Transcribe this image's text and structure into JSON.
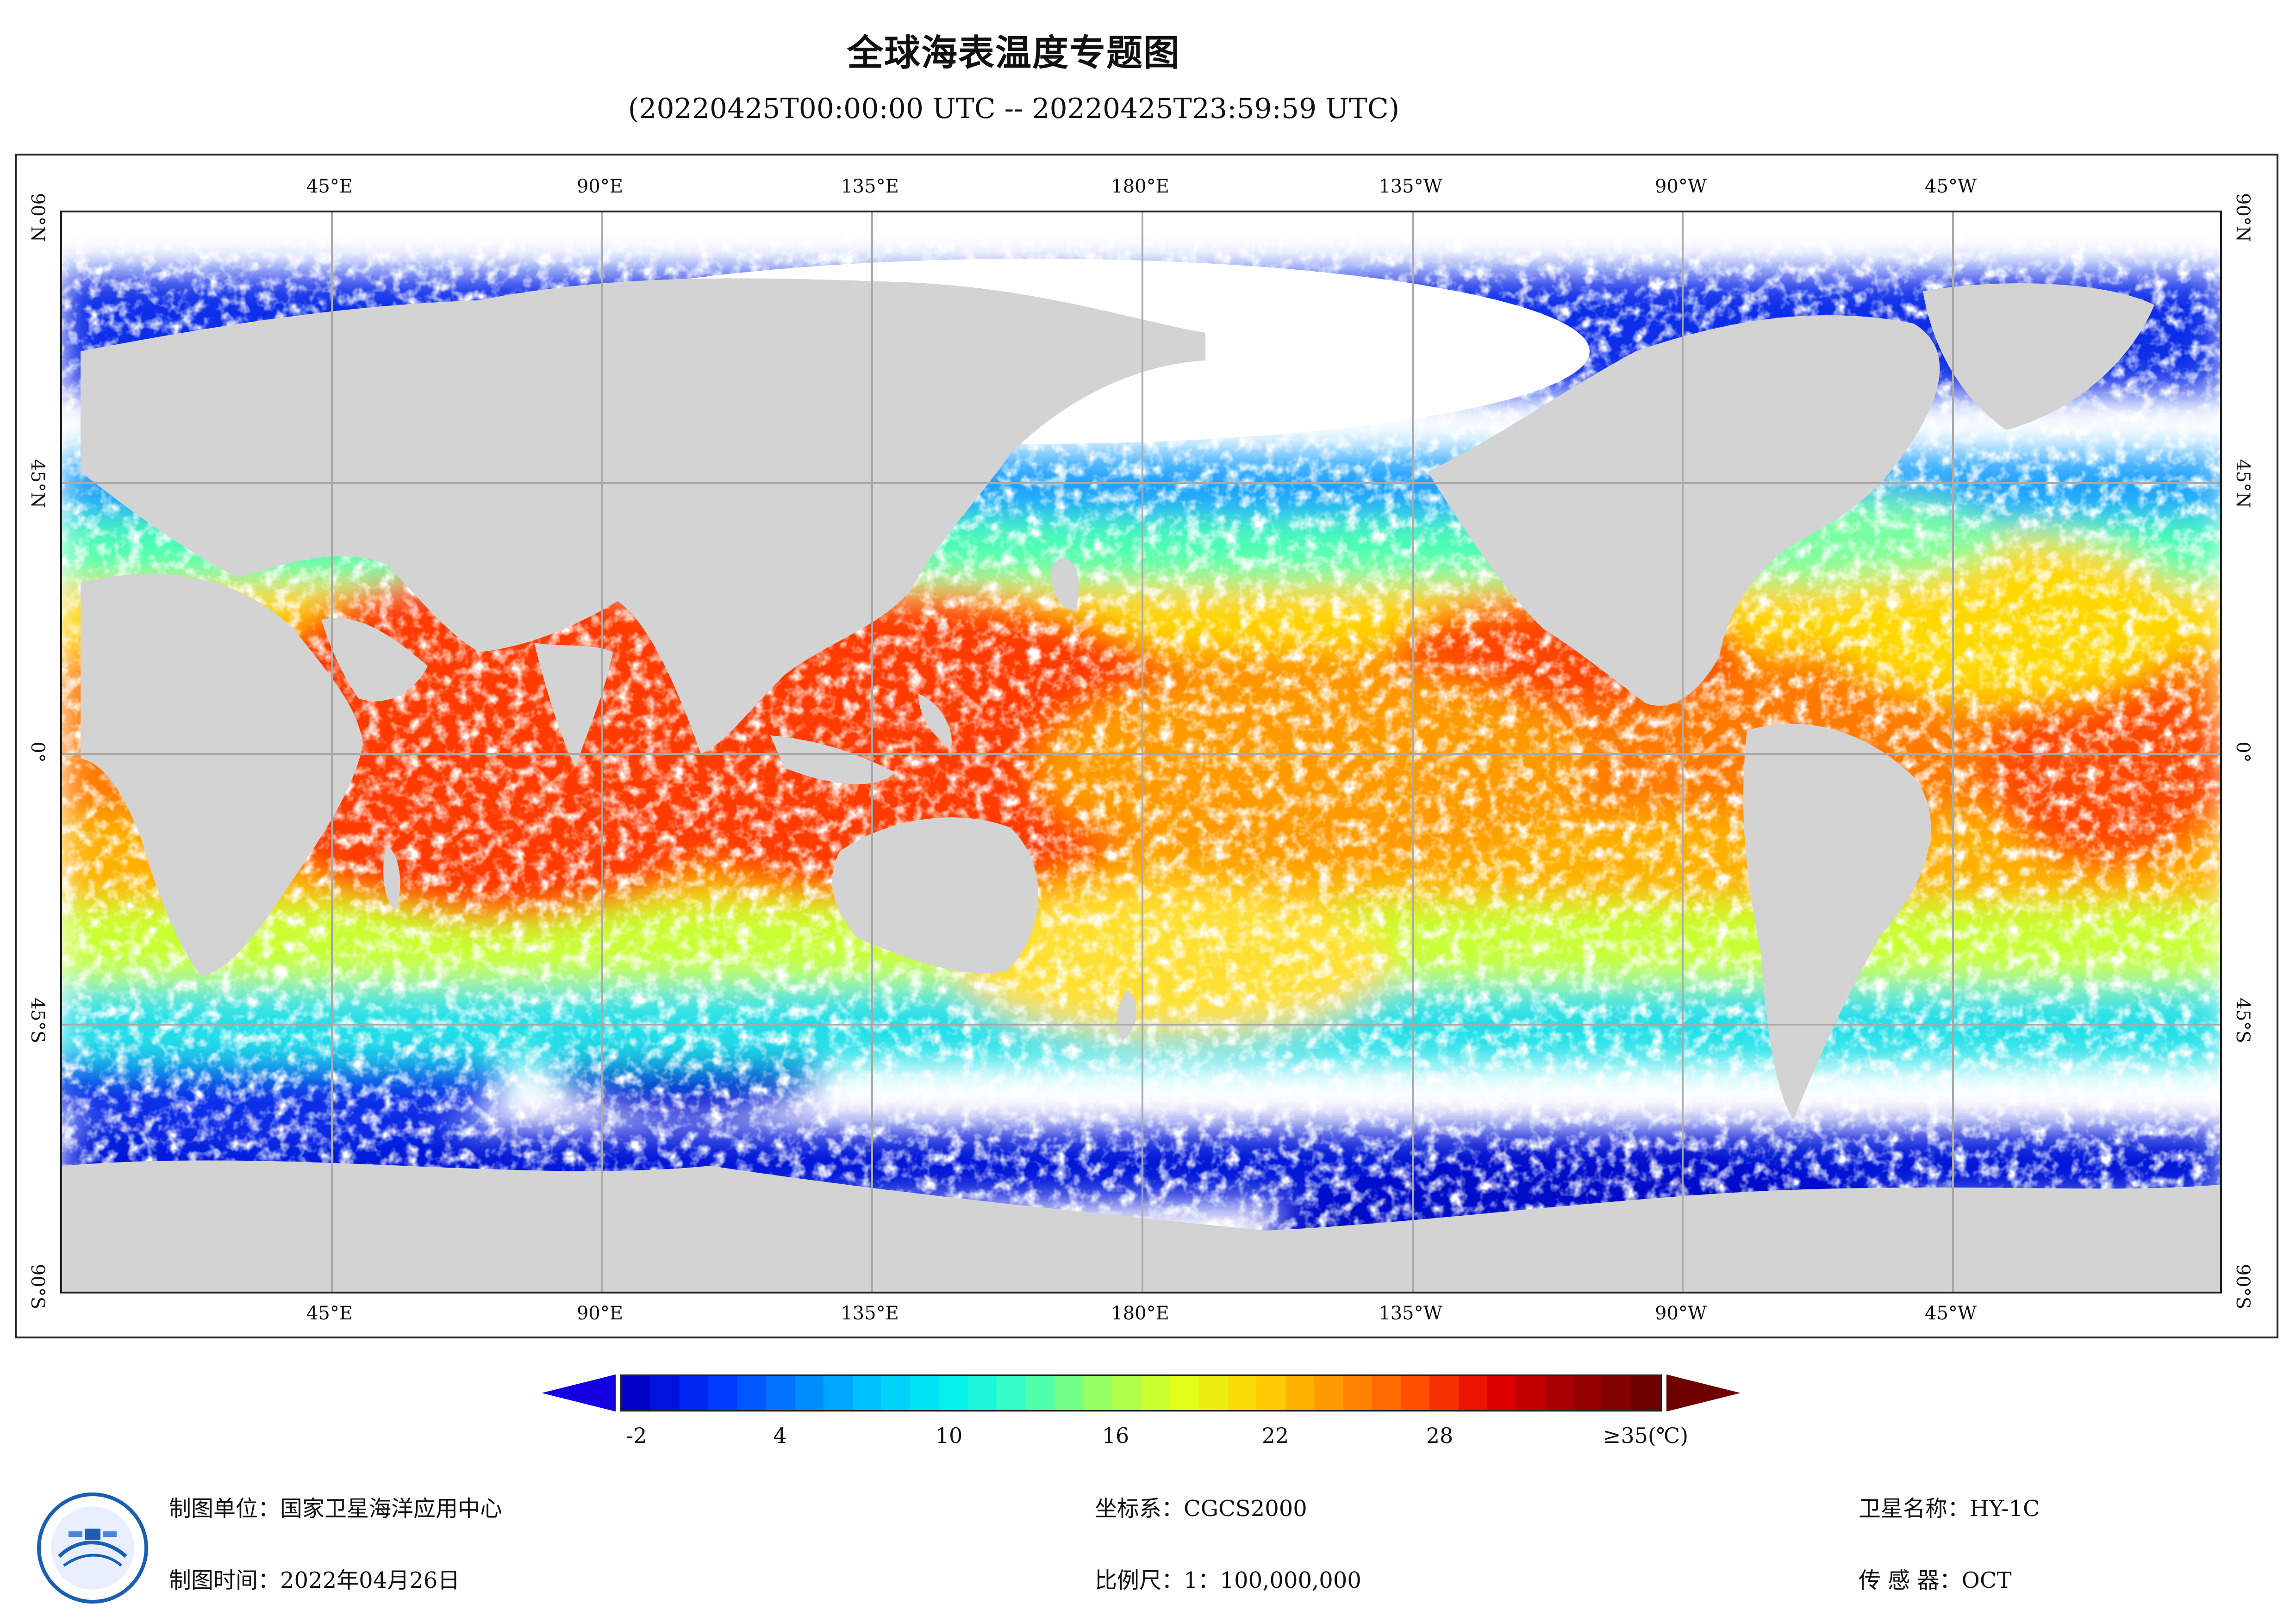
{
  "title": "全球海表温度专题图",
  "subtitle": "(20220425T00:00:00 UTC -- 20220425T23:59:59 UTC)",
  "map": {
    "longitude_labels": [
      "45°E",
      "90°E",
      "135°E",
      "180°E",
      "135°W",
      "90°W",
      "45°W"
    ],
    "latitude_labels": [
      "90°N",
      "45°N",
      "0°",
      "45°S",
      "90°S"
    ],
    "colors": {
      "land": "#d3d3d3",
      "grid": "#a9a9a9",
      "sea_no_data": "#ffffff"
    }
  },
  "colorbar": {
    "tick_labels": [
      "-2",
      "4",
      "10",
      "16",
      "22",
      "28",
      "≥35(℃)"
    ],
    "tick_values": [
      -2,
      4,
      10,
      16,
      22,
      28,
      35
    ],
    "range": [
      -2,
      35
    ],
    "colors": [
      "#0000c8",
      "#0033ff",
      "#007cff",
      "#00c4ff",
      "#00f0f0",
      "#3dffbe",
      "#9cff5e",
      "#e1ff1c",
      "#ffd500",
      "#ff9500",
      "#ff5200",
      "#e60000",
      "#a00000",
      "#6e0000"
    ]
  },
  "footer": {
    "unit": "制图单位：国家卫星海洋应用中心",
    "time": "制图时间：2022年04月26日",
    "crs": "坐标系：CGCS2000",
    "scale": "比例尺：1：100,000,000",
    "satellite": "卫星名称：HY-1C",
    "sensor": "传 感 器：OCT"
  }
}
